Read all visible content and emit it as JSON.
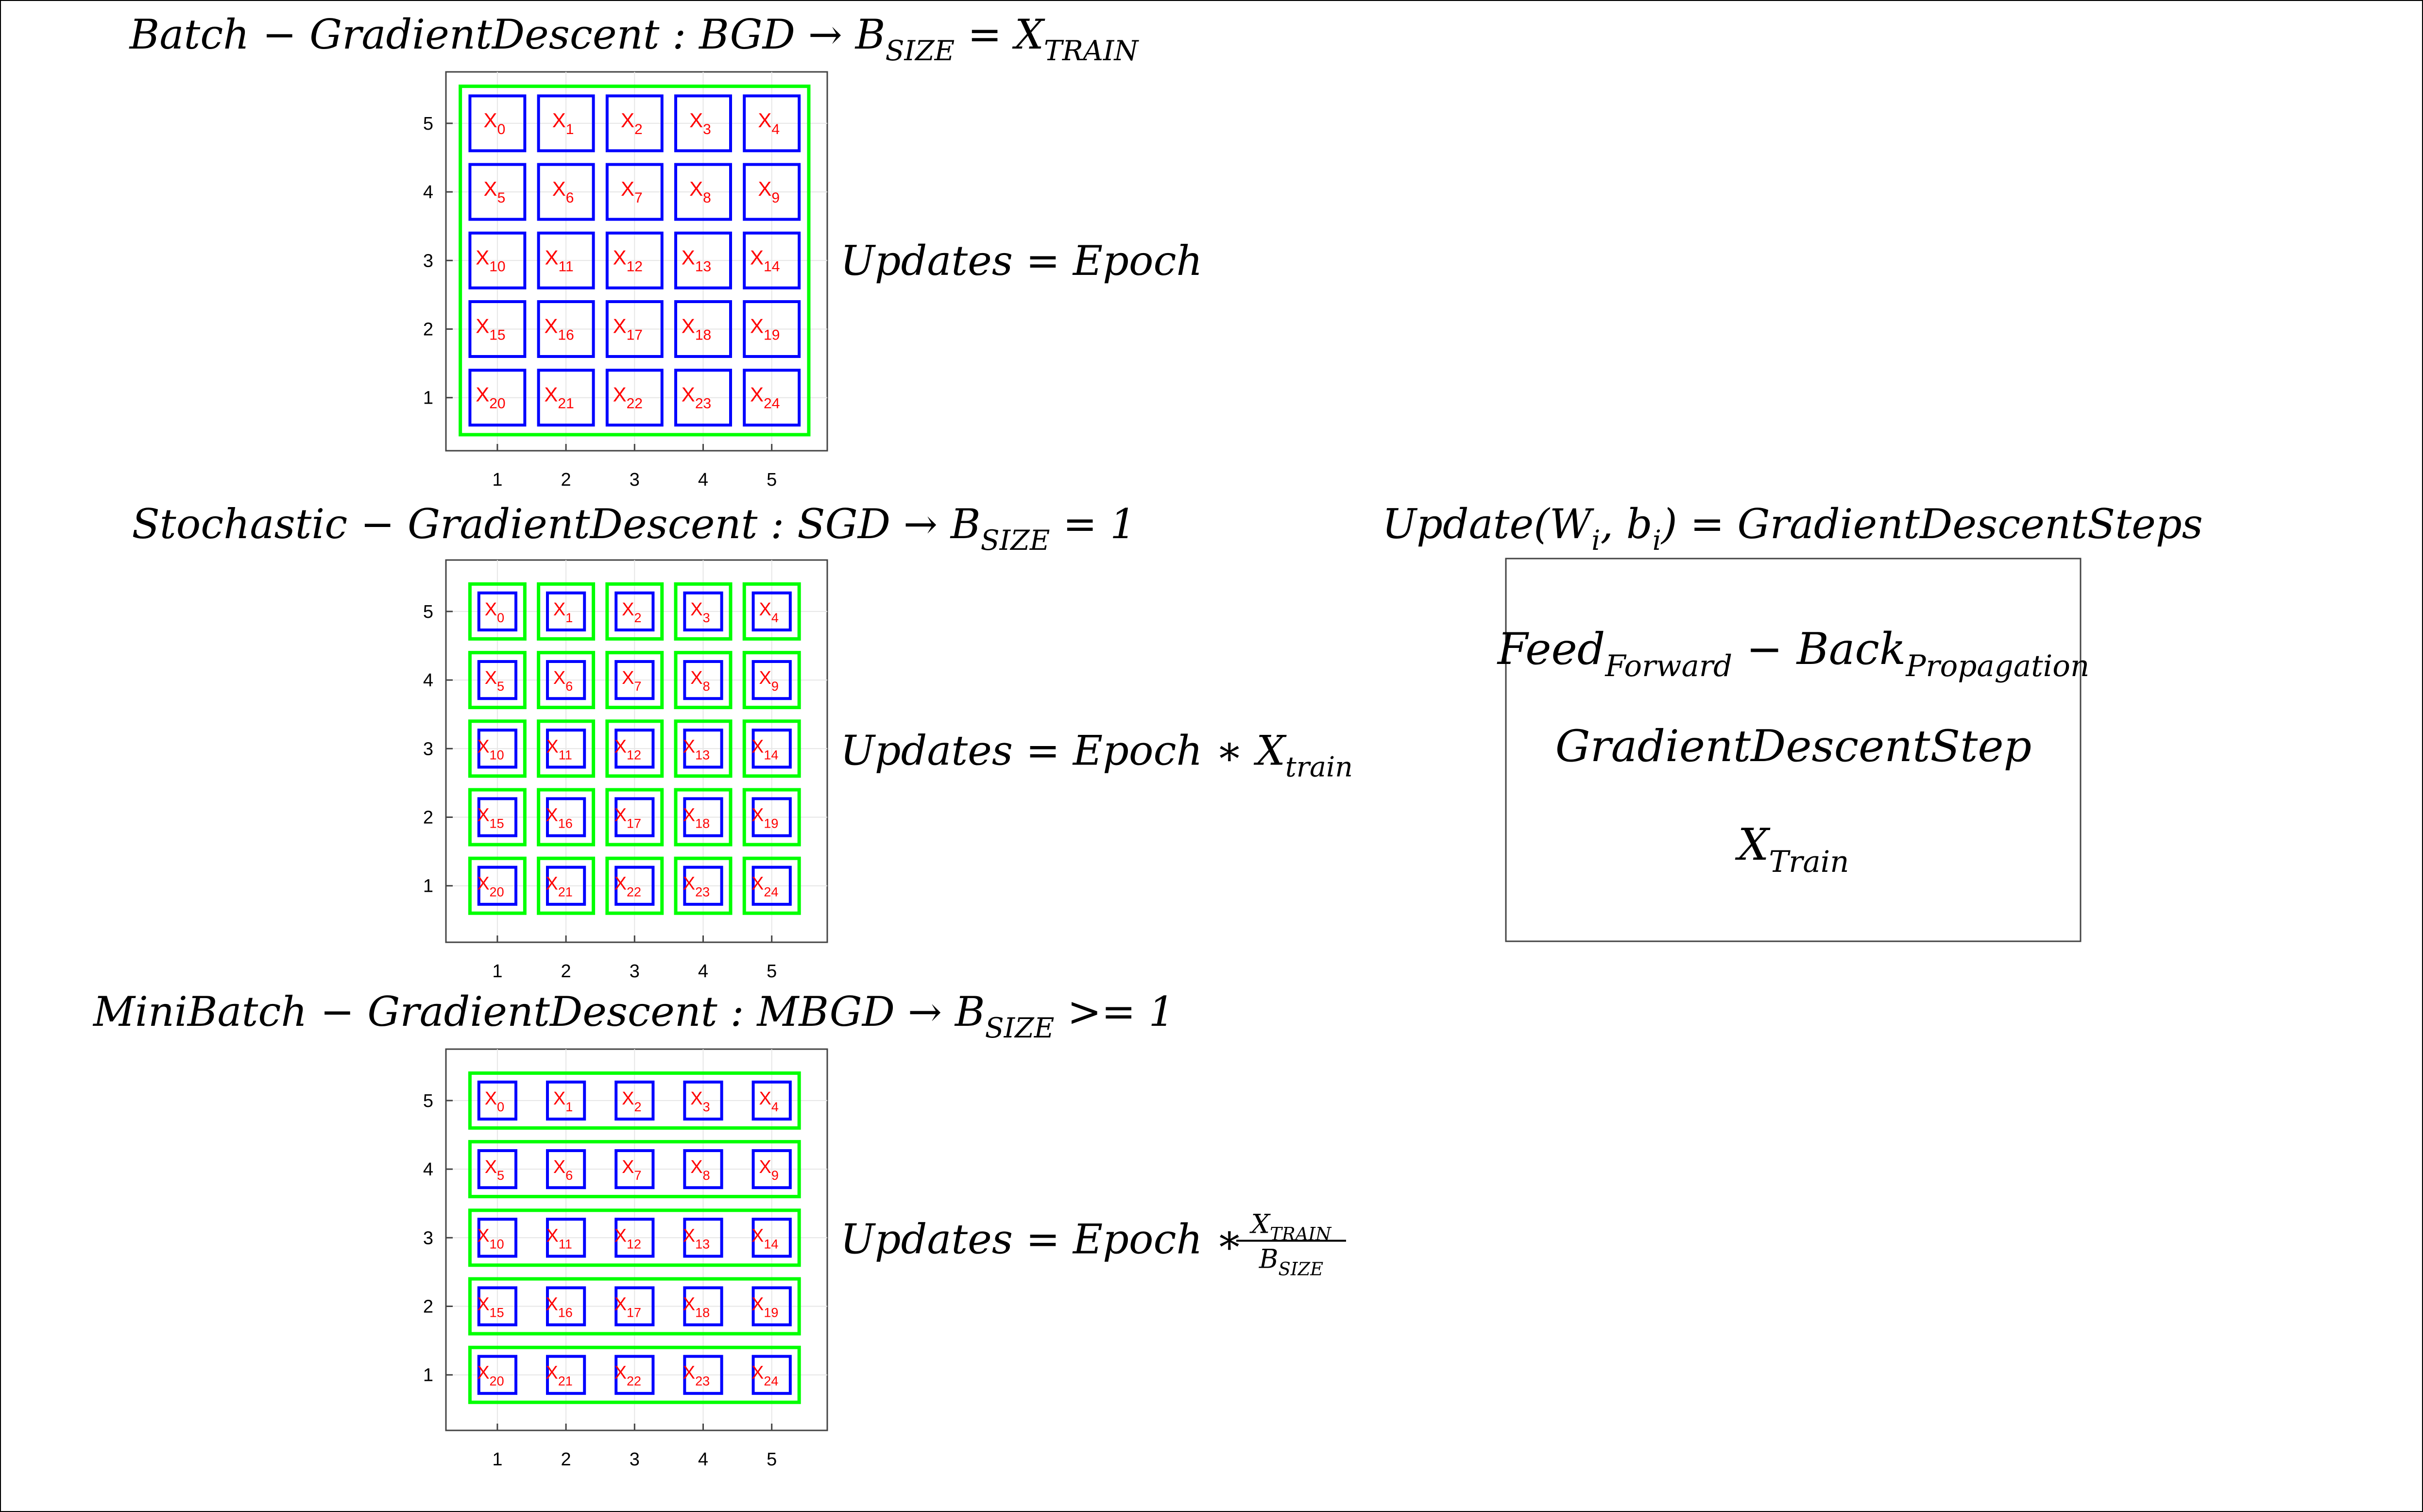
{
  "colors": {
    "forward_back": "#0000ff",
    "gradient_step": "#00ff00",
    "sample": "#ff0000",
    "text": "#000000",
    "grid": "#e6e6e6"
  },
  "panels": [
    {
      "id": "bgd",
      "title": {
        "parts": [
          {
            "t": "Batch − GradientDescent : BGD → B"
          },
          {
            "t": "SIZE",
            "sub": true
          },
          {
            "t": " = X"
          },
          {
            "t": "TRAIN",
            "sub": true
          }
        ]
      },
      "grouping": "all",
      "updates": {
        "parts": [
          {
            "t": "Updates = Epoch"
          }
        ]
      }
    },
    {
      "id": "sgd",
      "title": {
        "parts": [
          {
            "t": "Stochastic − GradientDescent : SGD → B"
          },
          {
            "t": "SIZE",
            "sub": true
          },
          {
            "t": " = 1"
          }
        ]
      },
      "grouping": "each",
      "updates": {
        "parts": [
          {
            "t": "Updates = Epoch ∗ X"
          },
          {
            "t": "train",
            "sub": true
          }
        ]
      }
    },
    {
      "id": "mbgd",
      "title": {
        "parts": [
          {
            "t": "MiniBatch − GradientDescent : MBGD → B"
          },
          {
            "t": "SIZE",
            "sub": true
          },
          {
            "t": " >= 1"
          }
        ]
      },
      "grouping": "row",
      "updates": {
        "parts": [
          {
            "t": "Updates = Epoch ∗ "
          }
        ],
        "fraction": {
          "num": [
            {
              "t": "X"
            },
            {
              "t": "TRAIN",
              "sub": true
            }
          ],
          "den": [
            {
              "t": "B"
            },
            {
              "t": "SIZE",
              "sub": true
            }
          ]
        }
      }
    }
  ],
  "grid": {
    "x_ticks": [
      "1",
      "2",
      "3",
      "4",
      "5"
    ],
    "y_ticks": [
      "5",
      "4",
      "3",
      "2",
      "1"
    ],
    "cell_prefix": "X",
    "rows": [
      [
        "0",
        "1",
        "2",
        "3",
        "4"
      ],
      [
        "5",
        "6",
        "7",
        "8",
        "9"
      ],
      [
        "10",
        "11",
        "12",
        "13",
        "14"
      ],
      [
        "15",
        "16",
        "17",
        "18",
        "19"
      ],
      [
        "20",
        "21",
        "22",
        "23",
        "24"
      ]
    ]
  },
  "legend": {
    "heading": {
      "parts": [
        {
          "t": "Update(W"
        },
        {
          "t": "i",
          "sub": true
        },
        {
          "t": ", b"
        },
        {
          "t": "i",
          "sub": true
        },
        {
          "t": ") = GradientDescentSteps"
        }
      ]
    },
    "items": [
      {
        "key": "forward_back",
        "parts": [
          {
            "t": "Feed"
          },
          {
            "t": "Forward",
            "sub": true
          },
          {
            "t": " − Back"
          },
          {
            "t": "Propagation",
            "sub": true
          }
        ]
      },
      {
        "key": "gradient_step",
        "parts": [
          {
            "t": "GradientDescentStep"
          }
        ]
      },
      {
        "key": "sample",
        "parts": [
          {
            "t": "X"
          },
          {
            "t": "Train",
            "sub": true
          }
        ]
      }
    ]
  }
}
